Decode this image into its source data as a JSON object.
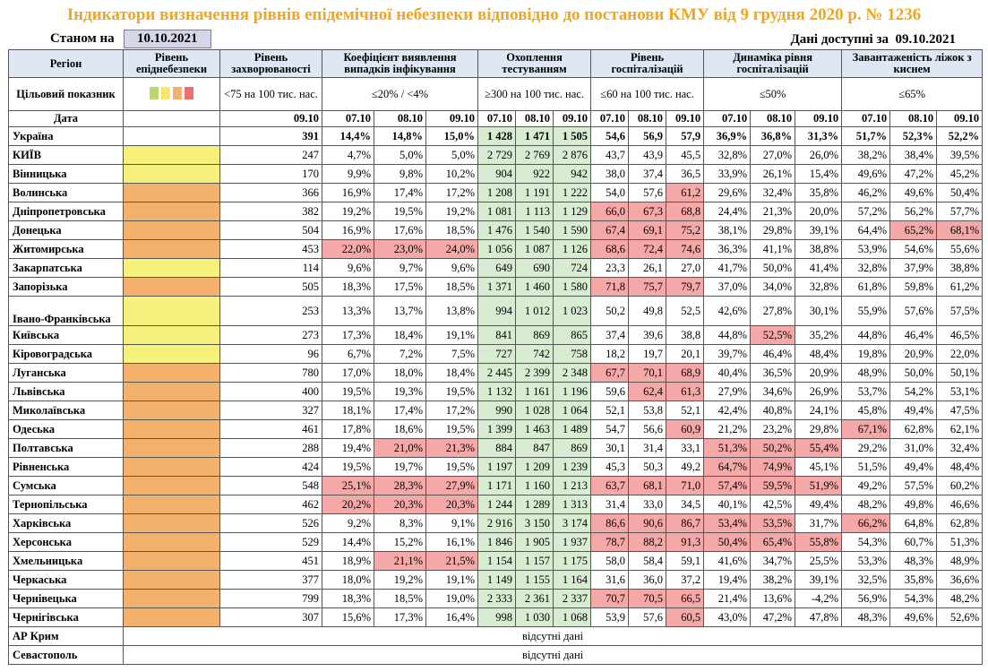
{
  "title": "Індикатори визначення рівнів епідемічної небезпеки відповідно до постанови КМУ від 9 грудня 2020 р. № 1236",
  "as_of_label": "Станом на",
  "as_of_date": "10.10.2021",
  "data_available_label": "Дані доступні за",
  "data_available_date": "09.10.2021",
  "colors": {
    "yellow": "#f6f07c",
    "orange": "#f4b16e",
    "red": "#f5a8a8",
    "green": "#d8ecd1",
    "title": "#f2a51e"
  },
  "headers": {
    "region": "Регіон",
    "level": "Рівень епіднебезпеки",
    "incidence": "Рівень захворюваності",
    "positivity": "Коефіцієнт виявлення випадків інфікування",
    "testing": "Охоплення тестуванням",
    "hosp": "Рівень госпіталізацій",
    "hosp_dyn": "Динаміка рівня госпіталізацій",
    "oxygen": "Завантаженість ліжок з киснем"
  },
  "targets": {
    "label": "Цільовий показник",
    "incidence": "<75 на 100 тис. нас.",
    "positivity": "≤20% / <4%",
    "testing": "≥300 на 100 тис. нас.",
    "hosp": "≤60 на 100 тис. нас.",
    "hosp_dyn": "≤50%",
    "oxygen": "≤65%",
    "legend_colors": [
      "#b9d86a",
      "#f6e76a",
      "#f4b16e",
      "#ef6f6f"
    ]
  },
  "date_row": {
    "label": "Дата",
    "incidence": "09.10",
    "positivity": [
      "07.10",
      "08.10",
      "09.10"
    ],
    "testing": [
      "07.10",
      "08.10",
      "09.10"
    ],
    "hosp": [
      "07.10",
      "08.10",
      "09.10"
    ],
    "hosp_dyn": [
      "07.10",
      "08.10",
      "09.10"
    ],
    "oxygen": [
      "07.10",
      "08.10",
      "09.10"
    ]
  },
  "rows": [
    {
      "name": "Україна",
      "level": "",
      "inc": "391",
      "pos": [
        "14,4%",
        "14,8%",
        "15,0%"
      ],
      "test": [
        "1 428",
        "1 471",
        "1 505"
      ],
      "hosp": [
        "54,6",
        "56,9",
        "57,9"
      ],
      "dyn": [
        "36,9%",
        "36,8%",
        "31,3%"
      ],
      "oxy": [
        "51,7%",
        "52,3%",
        "52,2%"
      ],
      "hl": []
    },
    {
      "name": "КИЇВ",
      "level": "yellow",
      "inc": "247",
      "pos": [
        "4,7%",
        "5,0%",
        "5,0%"
      ],
      "test": [
        "2 729",
        "2 769",
        "2 876"
      ],
      "hosp": [
        "43,7",
        "43,9",
        "45,5"
      ],
      "dyn": [
        "32,8%",
        "27,0%",
        "26,0%"
      ],
      "oxy": [
        "38,2%",
        "38,4%",
        "39,5%"
      ],
      "hl": []
    },
    {
      "name": "Вінницька",
      "level": "yellow",
      "inc": "170",
      "pos": [
        "9,9%",
        "9,8%",
        "10,2%"
      ],
      "test": [
        "904",
        "922",
        "942"
      ],
      "hosp": [
        "38,0",
        "37,4",
        "36,5"
      ],
      "dyn": [
        "33,9%",
        "26,1%",
        "15,4%"
      ],
      "oxy": [
        "49,6%",
        "47,2%",
        "45,2%"
      ],
      "hl": []
    },
    {
      "name": "Волинська",
      "level": "orange",
      "inc": "366",
      "pos": [
        "16,9%",
        "17,4%",
        "17,2%"
      ],
      "test": [
        "1 208",
        "1 191",
        "1 222"
      ],
      "hosp": [
        "54,0",
        "57,6",
        "61,2"
      ],
      "dyn": [
        "29,6%",
        "32,4%",
        "35,8%"
      ],
      "oxy": [
        "46,2%",
        "49,6%",
        "50,4%"
      ],
      "hl": [
        "hosp2"
      ]
    },
    {
      "name": "Дніпропетровська",
      "level": "orange",
      "inc": "382",
      "pos": [
        "19,2%",
        "19,5%",
        "19,2%"
      ],
      "test": [
        "1 081",
        "1 113",
        "1 129"
      ],
      "hosp": [
        "66,0",
        "67,3",
        "68,8"
      ],
      "dyn": [
        "24,4%",
        "21,3%",
        "20,0%"
      ],
      "oxy": [
        "57,2%",
        "56,2%",
        "57,7%"
      ],
      "hl": [
        "hosp0",
        "hosp1",
        "hosp2"
      ]
    },
    {
      "name": "Донецька",
      "level": "orange",
      "inc": "504",
      "pos": [
        "16,9%",
        "17,6%",
        "18,5%"
      ],
      "test": [
        "1 476",
        "1 540",
        "1 590"
      ],
      "hosp": [
        "67,4",
        "69,1",
        "75,2"
      ],
      "dyn": [
        "38,1%",
        "29,8%",
        "39,1%"
      ],
      "oxy": [
        "64,4%",
        "65,2%",
        "68,1%"
      ],
      "hl": [
        "hosp0",
        "hosp1",
        "hosp2",
        "oxy1",
        "oxy2"
      ]
    },
    {
      "name": "Житомирська",
      "level": "orange",
      "inc": "453",
      "pos": [
        "22,0%",
        "23,0%",
        "24,0%"
      ],
      "test": [
        "1 056",
        "1 087",
        "1 126"
      ],
      "hosp": [
        "68,6",
        "72,4",
        "74,6"
      ],
      "dyn": [
        "36,3%",
        "41,1%",
        "38,8%"
      ],
      "oxy": [
        "53,9%",
        "54,6%",
        "55,6%"
      ],
      "hl": [
        "pos0",
        "pos1",
        "pos2",
        "hosp0",
        "hosp1",
        "hosp2"
      ]
    },
    {
      "name": "Закарпатська",
      "level": "yellow",
      "inc": "114",
      "pos": [
        "9,6%",
        "9,7%",
        "9,6%"
      ],
      "test": [
        "649",
        "690",
        "724"
      ],
      "hosp": [
        "23,3",
        "26,1",
        "27,0"
      ],
      "dyn": [
        "41,7%",
        "50,0%",
        "41,4%"
      ],
      "oxy": [
        "32,8%",
        "37,9%",
        "38,8%"
      ],
      "hl": []
    },
    {
      "name": "Запорізька",
      "level": "orange",
      "inc": "505",
      "pos": [
        "18,3%",
        "17,5%",
        "18,5%"
      ],
      "test": [
        "1 371",
        "1 460",
        "1 580"
      ],
      "hosp": [
        "71,8",
        "75,7",
        "79,7"
      ],
      "dyn": [
        "37,0%",
        "34,0%",
        "32,8%"
      ],
      "oxy": [
        "61,8%",
        "59,8%",
        "61,2%"
      ],
      "hl": [
        "hosp0",
        "hosp1",
        "hosp2"
      ]
    },
    {
      "name": "Івано-Франківська",
      "level": "yellow",
      "inc": "253",
      "pos": [
        "13,3%",
        "13,7%",
        "13,8%"
      ],
      "test": [
        "994",
        "1 012",
        "1 023"
      ],
      "hosp": [
        "50,2",
        "49,8",
        "52,5"
      ],
      "dyn": [
        "42,6%",
        "27,8%",
        "30,1%"
      ],
      "oxy": [
        "55,9%",
        "57,6%",
        "57,5%"
      ],
      "hl": [],
      "tall": true
    },
    {
      "name": "Київська",
      "level": "yellow",
      "inc": "273",
      "pos": [
        "17,3%",
        "18,4%",
        "19,1%"
      ],
      "test": [
        "841",
        "869",
        "865"
      ],
      "hosp": [
        "37,4",
        "39,6",
        "38,8"
      ],
      "dyn": [
        "44,8%",
        "52,5%",
        "35,2%"
      ],
      "oxy": [
        "44,8%",
        "46,4%",
        "46,5%"
      ],
      "hl": [
        "dyn1"
      ]
    },
    {
      "name": "Кіровоградська",
      "level": "yellow",
      "inc": "96",
      "pos": [
        "6,7%",
        "7,2%",
        "7,5%"
      ],
      "test": [
        "727",
        "742",
        "758"
      ],
      "hosp": [
        "18,2",
        "19,7",
        "20,1"
      ],
      "dyn": [
        "39,7%",
        "46,4%",
        "48,4%"
      ],
      "oxy": [
        "19,8%",
        "20,9%",
        "22,0%"
      ],
      "hl": []
    },
    {
      "name": "Луганська",
      "level": "orange",
      "inc": "780",
      "pos": [
        "17,0%",
        "18,0%",
        "18,4%"
      ],
      "test": [
        "2 445",
        "2 399",
        "2 348"
      ],
      "hosp": [
        "67,7",
        "70,1",
        "68,9"
      ],
      "dyn": [
        "40,4%",
        "36,5%",
        "20,9%"
      ],
      "oxy": [
        "48,9%",
        "50,0%",
        "50,1%"
      ],
      "hl": [
        "hosp0",
        "hosp1",
        "hosp2"
      ]
    },
    {
      "name": "Львівська",
      "level": "orange",
      "inc": "400",
      "pos": [
        "19,5%",
        "19,3%",
        "19,5%"
      ],
      "test": [
        "1 132",
        "1 161",
        "1 196"
      ],
      "hosp": [
        "59,6",
        "62,4",
        "61,3"
      ],
      "dyn": [
        "27,9%",
        "34,6%",
        "26,9%"
      ],
      "oxy": [
        "53,7%",
        "54,2%",
        "53,1%"
      ],
      "hl": [
        "hosp1",
        "hosp2"
      ]
    },
    {
      "name": "Миколаївська",
      "level": "orange",
      "inc": "327",
      "pos": [
        "18,1%",
        "17,4%",
        "17,2%"
      ],
      "test": [
        "990",
        "1 028",
        "1 064"
      ],
      "hosp": [
        "52,1",
        "53,8",
        "52,1"
      ],
      "dyn": [
        "42,4%",
        "40,8%",
        "24,1%"
      ],
      "oxy": [
        "45,8%",
        "49,4%",
        "47,5%"
      ],
      "hl": []
    },
    {
      "name": "Одеська",
      "level": "orange",
      "inc": "461",
      "pos": [
        "17,8%",
        "18,6%",
        "19,5%"
      ],
      "test": [
        "1 399",
        "1 463",
        "1 489"
      ],
      "hosp": [
        "54,7",
        "56,6",
        "60,9"
      ],
      "dyn": [
        "21,2%",
        "23,2%",
        "29,8%"
      ],
      "oxy": [
        "67,1%",
        "62,8%",
        "62,1%"
      ],
      "hl": [
        "hosp2",
        "oxy0"
      ]
    },
    {
      "name": "Полтавська",
      "level": "orange",
      "inc": "288",
      "pos": [
        "19,4%",
        "21,0%",
        "21,3%"
      ],
      "test": [
        "884",
        "847",
        "869"
      ],
      "hosp": [
        "30,1",
        "31,4",
        "33,1"
      ],
      "dyn": [
        "51,3%",
        "50,2%",
        "55,4%"
      ],
      "oxy": [
        "29,2%",
        "31,0%",
        "32,4%"
      ],
      "hl": [
        "pos1",
        "pos2",
        "dyn0",
        "dyn1",
        "dyn2"
      ]
    },
    {
      "name": "Рівненська",
      "level": "orange",
      "inc": "424",
      "pos": [
        "19,5%",
        "19,7%",
        "19,5%"
      ],
      "test": [
        "1 197",
        "1 209",
        "1 239"
      ],
      "hosp": [
        "45,3",
        "50,3",
        "49,2"
      ],
      "dyn": [
        "64,7%",
        "74,9%",
        "45,1%"
      ],
      "oxy": [
        "51,5%",
        "49,4%",
        "48,4%"
      ],
      "hl": [
        "dyn0",
        "dyn1"
      ]
    },
    {
      "name": "Сумська",
      "level": "orange",
      "inc": "548",
      "pos": [
        "25,1%",
        "28,3%",
        "27,9%"
      ],
      "test": [
        "1 171",
        "1 160",
        "1 213"
      ],
      "hosp": [
        "63,7",
        "68,1",
        "71,0"
      ],
      "dyn": [
        "57,4%",
        "59,5%",
        "51,9%"
      ],
      "oxy": [
        "49,2%",
        "57,5%",
        "60,2%"
      ],
      "hl": [
        "pos0",
        "pos1",
        "pos2",
        "hosp0",
        "hosp1",
        "hosp2",
        "dyn0",
        "dyn1",
        "dyn2"
      ]
    },
    {
      "name": "Тернопільська",
      "level": "orange",
      "inc": "462",
      "pos": [
        "20,2%",
        "20,3%",
        "20,3%"
      ],
      "test": [
        "1 244",
        "1 289",
        "1 313"
      ],
      "hosp": [
        "31,4",
        "33,0",
        "34,5"
      ],
      "dyn": [
        "40,1%",
        "42,5%",
        "49,4%"
      ],
      "oxy": [
        "48,2%",
        "49,8%",
        "46,6%"
      ],
      "hl": [
        "pos0",
        "pos1",
        "pos2"
      ]
    },
    {
      "name": "Харківська",
      "level": "orange",
      "inc": "526",
      "pos": [
        "9,2%",
        "8,3%",
        "9,1%"
      ],
      "test": [
        "2 916",
        "3 150",
        "3 174"
      ],
      "hosp": [
        "86,6",
        "90,6",
        "86,7"
      ],
      "dyn": [
        "53,4%",
        "53,5%",
        "31,7%"
      ],
      "oxy": [
        "66,2%",
        "64,8%",
        "62,8%"
      ],
      "hl": [
        "hosp0",
        "hosp1",
        "hosp2",
        "dyn0",
        "dyn1",
        "oxy0"
      ]
    },
    {
      "name": "Херсонська",
      "level": "orange",
      "inc": "529",
      "pos": [
        "14,4%",
        "15,2%",
        "16,1%"
      ],
      "test": [
        "1 846",
        "1 905",
        "1 937"
      ],
      "hosp": [
        "78,7",
        "88,2",
        "91,3"
      ],
      "dyn": [
        "50,4%",
        "65,4%",
        "55,8%"
      ],
      "oxy": [
        "54,3%",
        "60,7%",
        "51,3%"
      ],
      "hl": [
        "hosp0",
        "hosp1",
        "hosp2",
        "dyn0",
        "dyn1",
        "dyn2"
      ]
    },
    {
      "name": "Хмельницька",
      "level": "orange",
      "inc": "451",
      "pos": [
        "18,9%",
        "21,1%",
        "21,5%"
      ],
      "test": [
        "1 154",
        "1 157",
        "1 175"
      ],
      "hosp": [
        "58,0",
        "58,4",
        "59,1"
      ],
      "dyn": [
        "41,6%",
        "34,7%",
        "25,5%"
      ],
      "oxy": [
        "53,3%",
        "48,3%",
        "48,9%"
      ],
      "hl": [
        "pos1",
        "pos2"
      ]
    },
    {
      "name": "Черкаська",
      "level": "orange",
      "inc": "377",
      "pos": [
        "18,0%",
        "19,2%",
        "19,1%"
      ],
      "test": [
        "1 149",
        "1 155",
        "1 164"
      ],
      "hosp": [
        "31,6",
        "36,0",
        "37,2"
      ],
      "dyn": [
        "19,4%",
        "38,2%",
        "39,1%"
      ],
      "oxy": [
        "32,5%",
        "35,8%",
        "36,6%"
      ],
      "hl": []
    },
    {
      "name": "Чернівецька",
      "level": "orange",
      "inc": "799",
      "pos": [
        "18,3%",
        "18,5%",
        "19,0%"
      ],
      "test": [
        "2 333",
        "2 361",
        "2 337"
      ],
      "hosp": [
        "70,7",
        "70,5",
        "66,5"
      ],
      "dyn": [
        "21,4%",
        "13,6%",
        "-4,2%"
      ],
      "oxy": [
        "56,9%",
        "54,3%",
        "48,2%"
      ],
      "hl": [
        "hosp0",
        "hosp1",
        "hosp2"
      ]
    },
    {
      "name": "Чернігівська",
      "level": "orange",
      "inc": "307",
      "pos": [
        "15,6%",
        "17,3%",
        "16,4%"
      ],
      "test": [
        "998",
        "1 030",
        "1 068"
      ],
      "hosp": [
        "53,9",
        "57,6",
        "60,5"
      ],
      "dyn": [
        "43,0%",
        "47,2%",
        "47,8%"
      ],
      "oxy": [
        "48,3%",
        "49,6%",
        "52,6%"
      ],
      "hl": [
        "hosp2"
      ]
    }
  ],
  "missing_rows": [
    {
      "name": "АР Крим",
      "note": "відсутні дані"
    },
    {
      "name": "Севастополь",
      "note": "відсутні дані"
    }
  ]
}
